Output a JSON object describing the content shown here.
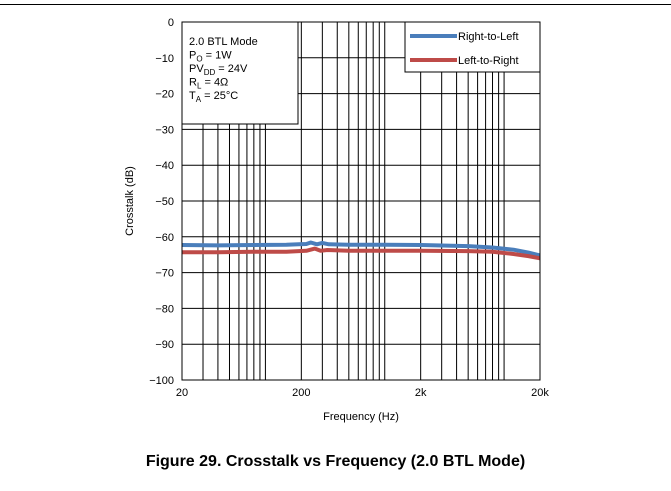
{
  "chart_data": {
    "type": "line",
    "x_scale": "log",
    "xlabel": "Frequency (Hz)",
    "ylabel": "Crosstalk (dB)",
    "xlim": [
      20,
      20000
    ],
    "ylim": [
      -100,
      0
    ],
    "x_ticks": [
      {
        "value": 20,
        "label": "20"
      },
      {
        "value": 200,
        "label": "200"
      },
      {
        "value": 2000,
        "label": "2k"
      },
      {
        "value": 20000,
        "label": "20k"
      }
    ],
    "y_ticks": [
      {
        "value": 0,
        "label": "0"
      },
      {
        "value": -10,
        "label": "−10"
      },
      {
        "value": -20,
        "label": "−20"
      },
      {
        "value": -30,
        "label": "−30"
      },
      {
        "value": -40,
        "label": "−40"
      },
      {
        "value": -50,
        "label": "−50"
      },
      {
        "value": -60,
        "label": "−60"
      },
      {
        "value": -70,
        "label": "−70"
      },
      {
        "value": -80,
        "label": "−80"
      },
      {
        "value": -90,
        "label": "−90"
      },
      {
        "value": -100,
        "label": "−100"
      }
    ],
    "grid": true,
    "legend_position": "top-right",
    "annotation_lines": [
      {
        "main": "2.0 BTL Mode"
      },
      {
        "main": "P",
        "sub": "O",
        "rest": " = 1W"
      },
      {
        "main": "PV",
        "sub": "DD",
        "rest": " = 24V"
      },
      {
        "main": "R",
        "sub": "L",
        "rest": " = 4Ω"
      },
      {
        "main": "T",
        "sub": "A",
        "rest": " = 25°C"
      }
    ],
    "series": [
      {
        "name": "Right-to-Left",
        "color": "#4a7ebb",
        "points": [
          [
            20,
            -62.3
          ],
          [
            40,
            -62.4
          ],
          [
            80,
            -62.3
          ],
          [
            150,
            -62.2
          ],
          [
            190,
            -62.1
          ],
          [
            220,
            -62.0
          ],
          [
            240,
            -61.6
          ],
          [
            270,
            -62.1
          ],
          [
            300,
            -61.7
          ],
          [
            340,
            -62.1
          ],
          [
            500,
            -62.2
          ],
          [
            1000,
            -62.2
          ],
          [
            2000,
            -62.3
          ],
          [
            5000,
            -62.6
          ],
          [
            8000,
            -63.0
          ],
          [
            12000,
            -63.6
          ],
          [
            16000,
            -64.4
          ],
          [
            20000,
            -65.2
          ]
        ]
      },
      {
        "name": "Left-to-Right",
        "color": "#be4b48",
        "points": [
          [
            20,
            -64.3
          ],
          [
            40,
            -64.3
          ],
          [
            80,
            -64.2
          ],
          [
            150,
            -64.2
          ],
          [
            190,
            -64.0
          ],
          [
            220,
            -63.9
          ],
          [
            260,
            -63.3
          ],
          [
            290,
            -63.9
          ],
          [
            330,
            -63.7
          ],
          [
            500,
            -63.9
          ],
          [
            1000,
            -63.9
          ],
          [
            2000,
            -63.9
          ],
          [
            5000,
            -64.0
          ],
          [
            8000,
            -64.2
          ],
          [
            12000,
            -64.8
          ],
          [
            16000,
            -65.4
          ],
          [
            20000,
            -66.0
          ]
        ]
      }
    ]
  },
  "caption": "Figure 29. Crosstalk vs Frequency (2.0 BTL Mode)"
}
